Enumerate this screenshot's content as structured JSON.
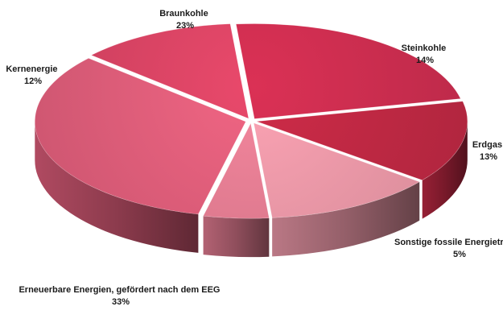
{
  "chart_data": {
    "type": "pie",
    "style": "3d-exploded",
    "title": "",
    "slices": [
      {
        "key": "braunkohle",
        "label": "Braunkohle",
        "value": 23,
        "value_text": "23%",
        "color": "#cf2e50"
      },
      {
        "key": "steinkohle",
        "label": "Steinkohle",
        "value": 14,
        "value_text": "14%",
        "color": "#c22944"
      },
      {
        "key": "erdgas",
        "label": "Erdgas",
        "value": 13,
        "value_text": "13%",
        "color": "#ee9aaa"
      },
      {
        "key": "sonstige",
        "label": "Sonstige fossile Energieträger",
        "value": 5,
        "value_text": "5%",
        "color": "#e67e94"
      },
      {
        "key": "erneuerbare",
        "label": "Erneuerbare Energien, gefördert nach dem EEG",
        "value": 33,
        "value_text": "33%",
        "color": "#e25f7c"
      },
      {
        "key": "kernenergie",
        "label": "Kernenergie",
        "value": 12,
        "value_text": "12%",
        "color": "#dc4565"
      }
    ]
  }
}
